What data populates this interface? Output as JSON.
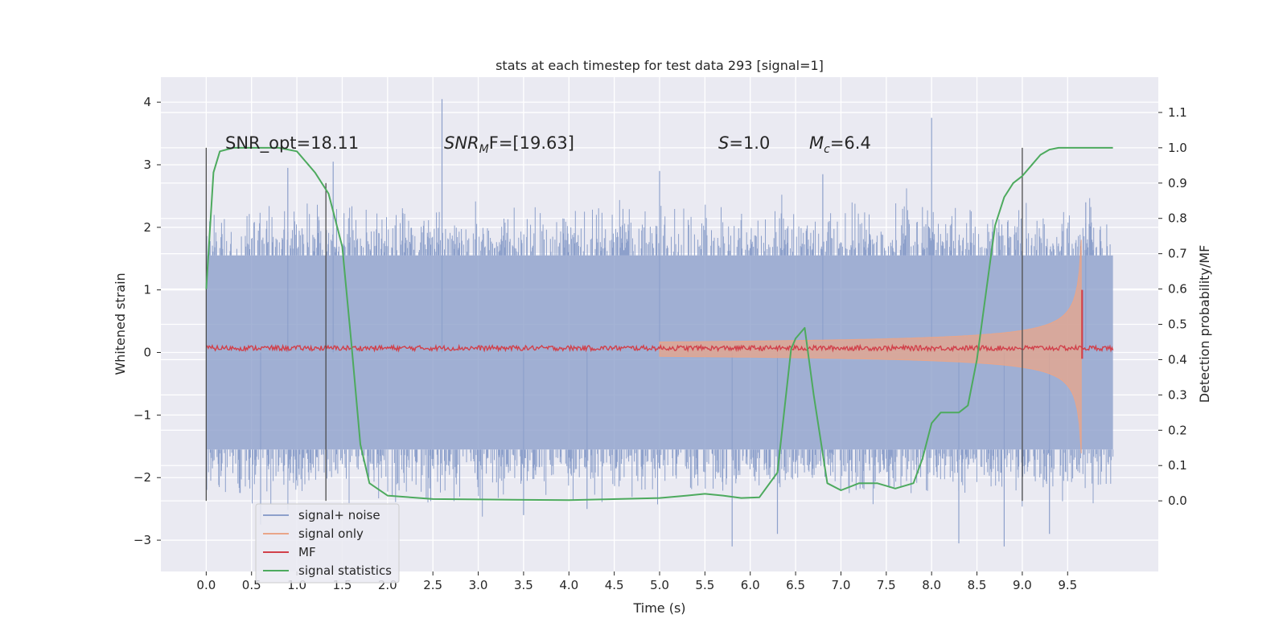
{
  "chart_data": {
    "type": "line",
    "title": "stats at each timestep for test data 293 [signal=1]",
    "xlabel": "Time (s)",
    "ylabel_left": "Whitened strain",
    "ylabel_right": "Detection probability/MF",
    "xlim": [
      -0.5,
      10.5
    ],
    "ylim_left": [
      -3.5,
      4.4
    ],
    "ylim_right": [
      -0.2,
      1.2
    ],
    "grid": true,
    "legend_position": "lower-left",
    "x_ticks": [
      "0.0",
      "0.5",
      "1.0",
      "1.5",
      "2.0",
      "2.5",
      "3.0",
      "3.5",
      "4.0",
      "4.5",
      "5.0",
      "5.5",
      "6.0",
      "6.5",
      "7.0",
      "7.5",
      "8.0",
      "8.5",
      "9.0",
      "9.5"
    ],
    "y_ticks_left": [
      "−3",
      "−2",
      "−1",
      "0",
      "1",
      "2",
      "3",
      "4"
    ],
    "y_ticks_right": [
      "0.0",
      "0.1",
      "0.2",
      "0.3",
      "0.4",
      "0.5",
      "0.6",
      "0.7",
      "0.8",
      "0.9",
      "1.0",
      "1.1"
    ],
    "annotations": {
      "snr_opt": "SNR_opt=18.11",
      "snr_mf_base": "SNR",
      "snr_mf_sub": "M",
      "snr_mf_rest": "F=[19.63]",
      "s_sym": "S",
      "s_val": "=1.0",
      "mc_sym": "M",
      "mc_sub": "c",
      "mc_val": "=6.4"
    },
    "legend": [
      {
        "label": "signal+ noise",
        "color": "#8da0cb"
      },
      {
        "label": "signal only",
        "color": "#e9a589"
      },
      {
        "label": "MF",
        "color": "#d1404a"
      },
      {
        "label": "signal statistics",
        "color": "#4daa5e"
      }
    ],
    "noise": {
      "x_start": 0.0,
      "x_end": 10.0,
      "band": 1.55,
      "peak_min": 1.6,
      "peak_max": 2.6,
      "trough_min": -1.6,
      "trough_max": -2.6
    },
    "noise_spikes": [
      {
        "x": 2.6,
        "y": 4.05
      },
      {
        "x": 8.0,
        "y": 3.75
      },
      {
        "x": 1.4,
        "y": 3.05
      },
      {
        "x": 5.0,
        "y": 2.9
      },
      {
        "x": 6.8,
        "y": 2.85
      },
      {
        "x": 0.9,
        "y": 2.95
      },
      {
        "x": 9.7,
        "y": 2.4
      },
      {
        "x": 5.8,
        "y": -3.1
      },
      {
        "x": 8.8,
        "y": -3.1
      },
      {
        "x": 8.3,
        "y": -3.05
      },
      {
        "x": 6.3,
        "y": -2.9
      },
      {
        "x": 4.2,
        "y": -2.5
      },
      {
        "x": 3.5,
        "y": -2.6
      },
      {
        "x": 0.6,
        "y": -2.75
      },
      {
        "x": 9.3,
        "y": -2.9
      }
    ],
    "signal_only": {
      "x_start": 5.0,
      "x_merger": 9.65,
      "amp_start": 0.02,
      "amp_peak": 1.75,
      "offset": 0.05
    },
    "mf_line": {
      "x_start": 0.0,
      "x_end": 10.0,
      "level": 0.07,
      "jitter": 0.05,
      "spike_x": 9.66,
      "spike_y": 1.0,
      "spike_low": -0.1
    },
    "signal_statistics": {
      "x": [
        0.0,
        0.08,
        0.15,
        0.3,
        0.5,
        0.8,
        1.0,
        1.2,
        1.35,
        1.5,
        1.6,
        1.7,
        1.8,
        2.0,
        2.5,
        3.0,
        4.0,
        5.0,
        5.3,
        5.5,
        5.7,
        5.9,
        6.1,
        6.3,
        6.45,
        6.5,
        6.6,
        6.7,
        6.85,
        7.0,
        7.2,
        7.4,
        7.6,
        7.8,
        7.9,
        8.0,
        8.1,
        8.3,
        8.4,
        8.5,
        8.6,
        8.7,
        8.8,
        8.9,
        9.0,
        9.1,
        9.2,
        9.3,
        9.4,
        9.5,
        9.7,
        10.0
      ],
      "y": [
        0.6,
        0.93,
        0.99,
        1.0,
        1.0,
        1.0,
        0.99,
        0.93,
        0.87,
        0.72,
        0.45,
        0.16,
        0.05,
        0.015,
        0.005,
        0.004,
        0.002,
        0.008,
        0.015,
        0.02,
        0.015,
        0.008,
        0.01,
        0.08,
        0.43,
        0.46,
        0.49,
        0.3,
        0.05,
        0.03,
        0.05,
        0.05,
        0.035,
        0.05,
        0.12,
        0.22,
        0.25,
        0.25,
        0.27,
        0.4,
        0.59,
        0.78,
        0.86,
        0.9,
        0.92,
        0.95,
        0.98,
        0.995,
        1.0,
        1.0,
        1.0,
        1.0
      ]
    },
    "vertical_markers": [
      {
        "x": 0.0,
        "y_top": 1.0,
        "y_bottom": 0.0
      },
      {
        "x": 1.32,
        "y_top": 0.9,
        "y_bottom": 0.0
      },
      {
        "x": 9.0,
        "y_top": 1.0,
        "y_bottom": 0.0
      }
    ]
  }
}
